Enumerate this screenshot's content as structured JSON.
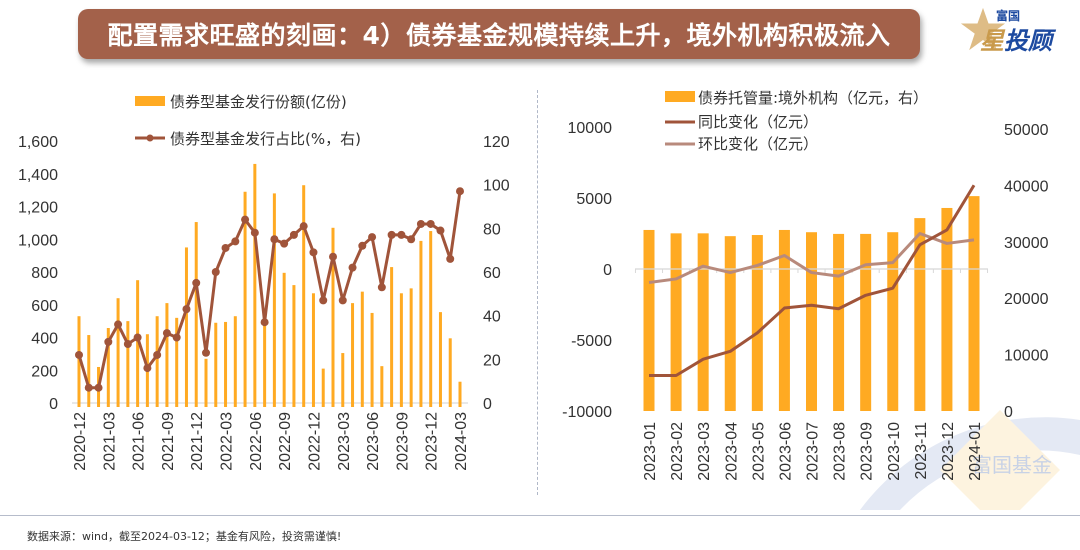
{
  "header": {
    "title": "配置需求旺盛的刻画：4）债券基金规模持续上升，境外机构积极流入",
    "logo_small": "富国",
    "logo_big_first": "星",
    "logo_big_rest": "投顾",
    "watermark": "富国基金"
  },
  "footer": {
    "source": "数据来源：wind，截至2024-03-12；基金有风险，投资需谨慎!"
  },
  "colors": {
    "banner": "#a3614a",
    "bar": "#ffaa22",
    "line_dark": "#a0543a",
    "line_light": "#b88a7c",
    "brand_blue": "#1d4aa0"
  },
  "chart_data": [
    {
      "type": "bar+line",
      "title": "",
      "legend": [
        "债券型基金发行份额(亿份)",
        "债券型基金发行占比(%，右)"
      ],
      "legend_placement": "top",
      "categories": [
        "2020-12",
        "2021-01",
        "2021-02",
        "2021-03",
        "2021-04",
        "2021-05",
        "2021-06",
        "2021-07",
        "2021-08",
        "2021-09",
        "2021-10",
        "2021-11",
        "2021-12",
        "2022-01",
        "2022-02",
        "2022-03",
        "2022-04",
        "2022-05",
        "2022-06",
        "2022-07",
        "2022-08",
        "2022-09",
        "2022-10",
        "2022-11",
        "2022-12",
        "2023-01",
        "2023-02",
        "2023-03",
        "2023-04",
        "2023-05",
        "2023-06",
        "2023-07",
        "2023-08",
        "2023-09",
        "2023-10",
        "2023-11",
        "2023-12",
        "2024-01",
        "2024-02",
        "2024-03"
      ],
      "tick_labels": [
        "2020-12",
        "2021-03",
        "2021-06",
        "2021-09",
        "2021-12",
        "2022-03",
        "2022-06",
        "2022-09",
        "2022-12",
        "2023-03",
        "2023-06",
        "2023-09",
        "2023-12",
        "2024-03"
      ],
      "series": [
        {
          "name": "债券型基金发行份额(亿份)",
          "type": "bar",
          "axis": "left",
          "values": [
            530,
            415,
            220,
            458,
            640,
            500,
            750,
            420,
            530,
            610,
            520,
            950,
            1105,
            270,
            490,
            495,
            530,
            1290,
            1460,
            495,
            1280,
            795,
            720,
            1330,
            670,
            210,
            1070,
            305,
            610,
            680,
            550,
            225,
            830,
            670,
            700,
            990,
            1050,
            555,
            395,
            130
          ]
        },
        {
          "name": "债券型基金发行占比(%，右)",
          "type": "line",
          "axis": "right",
          "values": [
            22,
            7,
            7,
            28,
            36,
            27,
            30,
            16,
            22,
            32,
            30,
            43,
            55,
            23,
            60,
            71,
            74,
            84,
            78,
            37,
            75,
            73,
            77,
            81,
            69,
            47,
            67,
            47,
            62,
            72,
            76,
            53,
            77,
            77,
            75,
            82,
            82,
            79,
            66,
            97
          ]
        }
      ],
      "yleft": {
        "ticks": [
          "0",
          "200",
          "400",
          "600",
          "800",
          "1,000",
          "1,200",
          "1,400",
          "1,600"
        ],
        "ylim": [
          0,
          1600
        ]
      },
      "yright": {
        "ticks": [
          "0",
          "20",
          "40",
          "60",
          "80",
          "100",
          "120"
        ],
        "ylim": [
          0,
          120
        ]
      },
      "grid": false
    },
    {
      "type": "bar+line",
      "title": "",
      "legend": [
        "债券托管量:境外机构（亿元，右）",
        "同比变化（亿元）",
        "环比变化（亿元）"
      ],
      "legend_placement": "top",
      "categories": [
        "2023-01",
        "2023-02",
        "2023-03",
        "2023-04",
        "2023-05",
        "2023-06",
        "2023-07",
        "2023-08",
        "2023-09",
        "2023-10",
        "2023-11",
        "2023-12",
        "2024-01"
      ],
      "series": [
        {
          "name": "债券托管量:境外机构（亿元，右）",
          "type": "bar",
          "axis": "right",
          "values": [
            32100,
            31500,
            31500,
            31000,
            31200,
            32100,
            31700,
            31400,
            31400,
            31700,
            34200,
            36000,
            38100
          ]
        },
        {
          "name": "同比变化（亿元）",
          "type": "line",
          "axis": "left",
          "values": [
            -7500,
            -7500,
            -6350,
            -5800,
            -4500,
            -2750,
            -2550,
            -2800,
            -1850,
            -1350,
            1700,
            2750,
            5900
          ]
        },
        {
          "name": "环比变化（亿元）",
          "type": "line",
          "axis": "left",
          "values": [
            -950,
            -700,
            200,
            -250,
            250,
            950,
            -250,
            -500,
            300,
            450,
            2500,
            1800,
            2050
          ]
        }
      ],
      "yleft": {
        "ticks": [
          "-10000",
          "-5000",
          "0",
          "5000",
          "10000"
        ],
        "ylim": [
          -10000,
          10000
        ]
      },
      "yright": {
        "ticks": [
          "0",
          "10000",
          "20000",
          "30000",
          "40000",
          "50000"
        ],
        "ylim": [
          0,
          50000
        ]
      },
      "grid": false
    }
  ]
}
